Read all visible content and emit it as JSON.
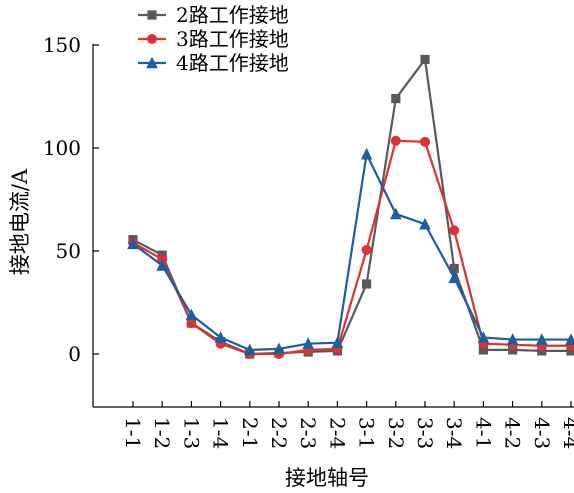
{
  "chart_data": {
    "type": "line",
    "xlabel": "接地轴号",
    "ylabel": "接地电流/A",
    "ylim": [
      -25,
      150
    ],
    "yticks": [
      0,
      50,
      100,
      150
    ],
    "grid": false,
    "legend_position": "top-left",
    "categories": [
      "1-1",
      "1-2",
      "1-3",
      "1-4",
      "2-1",
      "2-2",
      "2-3",
      "2-4",
      "3-1",
      "3-2",
      "3-3",
      "3-4",
      "4-1",
      "4-2",
      "4-3",
      "4-4"
    ],
    "series": [
      {
        "name": "2路工作接地",
        "color": "#595959",
        "marker": "square",
        "values": [
          55.5,
          48,
          15,
          6,
          0,
          0.5,
          1,
          1.5,
          34,
          124,
          143,
          41.5,
          2,
          2,
          1.5,
          1.5
        ]
      },
      {
        "name": "3路工作接地",
        "color": "#e03030",
        "marker": "circle",
        "values": [
          54,
          46,
          15,
          5,
          0,
          0,
          2,
          2.5,
          50.5,
          103.5,
          103,
          60,
          5,
          4.5,
          4,
          4
        ]
      },
      {
        "name": "4路工作接地",
        "color": "#1a5fa0",
        "marker": "triangle",
        "values": [
          53.5,
          43,
          19,
          8,
          2,
          2.5,
          5,
          5.5,
          97,
          68,
          63,
          37,
          8,
          7,
          7,
          7
        ]
      }
    ]
  }
}
